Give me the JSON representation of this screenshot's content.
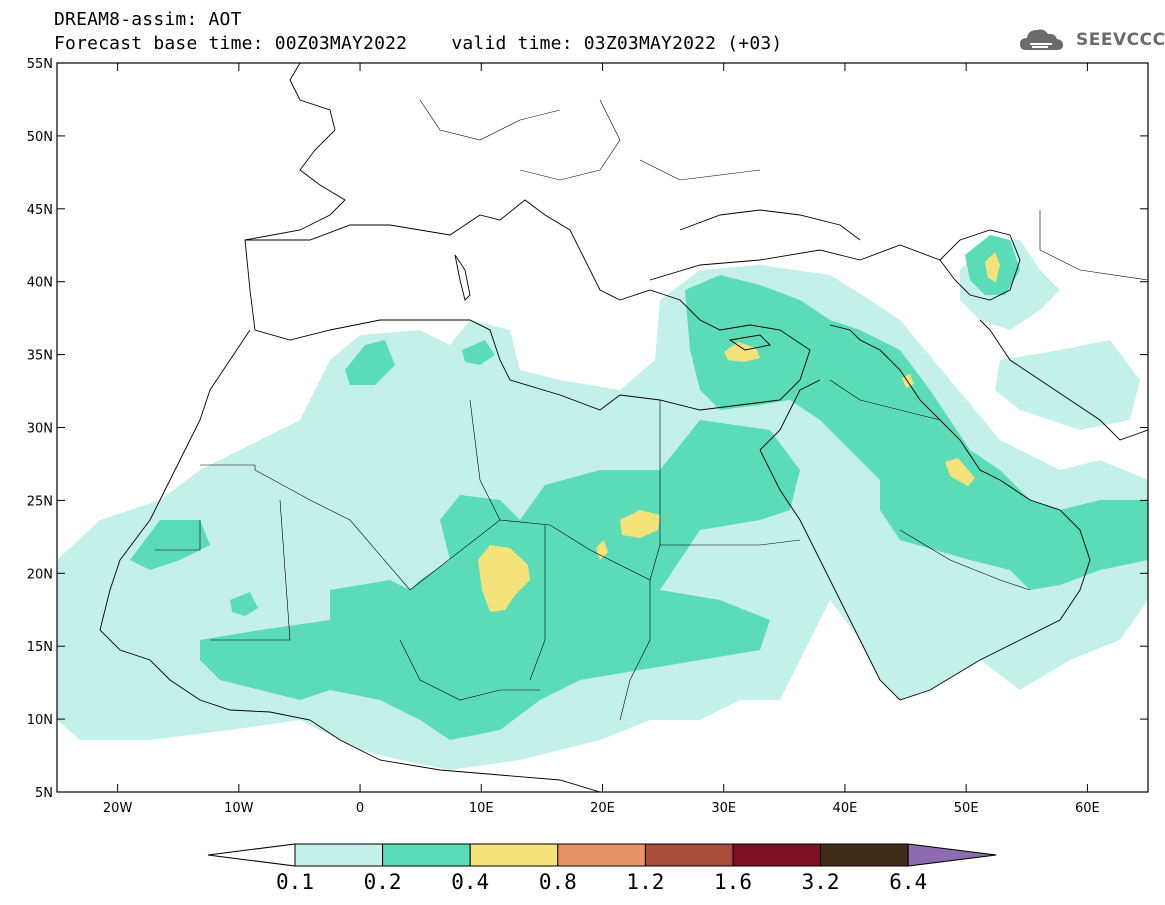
{
  "header": {
    "title_line1": "DREAM8-assim: AOT",
    "title_line2": "Forecast base time: 00Z03MAY2022    valid time: 03Z03MAY2022 (+03)"
  },
  "logo": {
    "text": "SEEVCCC",
    "icon": "cloud-icon",
    "color": "#6b6b6b"
  },
  "map": {
    "lon_range": [
      -25,
      65
    ],
    "lat_range": [
      5,
      55
    ],
    "lat_ticks": [
      {
        "value": 55,
        "label": "55N"
      },
      {
        "value": 50,
        "label": "50N"
      },
      {
        "value": 45,
        "label": "45N"
      },
      {
        "value": 40,
        "label": "40N"
      },
      {
        "value": 35,
        "label": "35N"
      },
      {
        "value": 30,
        "label": "30N"
      },
      {
        "value": 25,
        "label": "25N"
      },
      {
        "value": 20,
        "label": "20N"
      },
      {
        "value": 15,
        "label": "15N"
      },
      {
        "value": 10,
        "label": "10N"
      },
      {
        "value": 5,
        "label": "5N"
      }
    ],
    "lon_ticks": [
      {
        "value": -20,
        "label": "20W"
      },
      {
        "value": -10,
        "label": "10W"
      },
      {
        "value": 0,
        "label": "0"
      },
      {
        "value": 10,
        "label": "10E"
      },
      {
        "value": 20,
        "label": "20E"
      },
      {
        "value": 30,
        "label": "30E"
      },
      {
        "value": 40,
        "label": "40E"
      },
      {
        "value": 50,
        "label": "50E"
      },
      {
        "value": 60,
        "label": "60E"
      }
    ]
  },
  "colorbar": {
    "labels": [
      "0.1",
      "0.2",
      "0.4",
      "0.8",
      "1.2",
      "1.6",
      "3.2",
      "6.4"
    ],
    "colors": [
      "#c4f0ea",
      "#5bdcb7",
      "#f4e27a",
      "#e8936a",
      "#a94c3c",
      "#7d0f26",
      "#3f2b16"
    ],
    "under_color": "#ffffff",
    "over_color": "#8e6ab1"
  }
}
